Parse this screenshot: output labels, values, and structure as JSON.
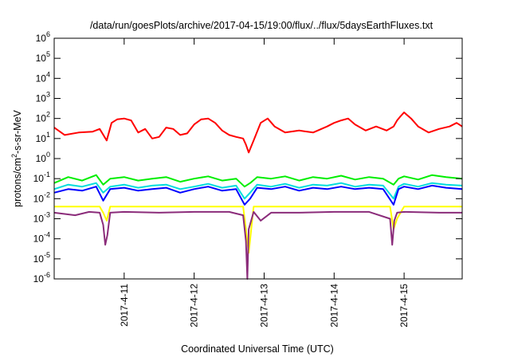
{
  "chart_data": {
    "type": "line",
    "title": "/data/run/goesPlots/archive/2017-04-15/19:00/flux/../flux/5daysEarthFluxes.txt",
    "xlabel": "Coordinated Universal Time (UTC)",
    "ylabel": {
      "main": "protons/cm",
      "sup": "2",
      "rest": "-s-sr-MeV"
    },
    "x_tick_labels": [
      "2017-4-11",
      "2017-4-12",
      "2017-4-13",
      "2017-4-14",
      "2017-4-15"
    ],
    "x_tick_positions": [
      1,
      2,
      3,
      4,
      5
    ],
    "xlim": [
      0.0,
      5.83
    ],
    "y_scale": "log",
    "ylim": [
      1e-06,
      1000000.0
    ],
    "y_tick_labels": [
      {
        "base": "10",
        "exp": "-6"
      },
      {
        "base": "10",
        "exp": "-5"
      },
      {
        "base": "10",
        "exp": "-4"
      },
      {
        "base": "10",
        "exp": "-3"
      },
      {
        "base": "10",
        "exp": "-2"
      },
      {
        "base": "10",
        "exp": "-1"
      },
      {
        "base": "10",
        "exp": "0"
      },
      {
        "base": "10",
        "exp": "1"
      },
      {
        "base": "10",
        "exp": "2"
      },
      {
        "base": "10",
        "exp": "3"
      },
      {
        "base": "10",
        "exp": "4"
      },
      {
        "base": "10",
        "exp": "5"
      },
      {
        "base": "10",
        "exp": "6"
      }
    ],
    "y_tick_values": [
      1e-06,
      1e-05,
      0.0001,
      0.001,
      0.01,
      0.1,
      1,
      10,
      100,
      1000,
      10000,
      100000,
      1000000
    ],
    "grid": false,
    "legend": "none",
    "series": [
      {
        "color": "#ff0000",
        "x": [
          0.0,
          0.15,
          0.35,
          0.55,
          0.65,
          0.75,
          0.82,
          0.9,
          1.0,
          1.1,
          1.2,
          1.3,
          1.4,
          1.5,
          1.6,
          1.7,
          1.8,
          1.9,
          2.0,
          2.1,
          2.2,
          2.3,
          2.4,
          2.5,
          2.6,
          2.7,
          2.74,
          2.78,
          2.85,
          2.95,
          3.05,
          3.15,
          3.3,
          3.5,
          3.7,
          3.9,
          4.0,
          4.1,
          4.2,
          4.3,
          4.45,
          4.6,
          4.75,
          4.85,
          4.9,
          4.95,
          5.0,
          5.1,
          5.2,
          5.35,
          5.5,
          5.65,
          5.75,
          5.83
        ],
        "y": [
          35,
          15,
          20,
          22,
          30,
          8,
          60,
          90,
          100,
          80,
          20,
          30,
          10,
          12,
          35,
          30,
          15,
          18,
          50,
          90,
          100,
          60,
          25,
          15,
          12,
          10,
          5,
          2,
          8,
          60,
          100,
          40,
          20,
          25,
          20,
          40,
          60,
          80,
          100,
          50,
          25,
          40,
          25,
          40,
          80,
          130,
          200,
          100,
          40,
          20,
          30,
          40,
          60,
          40
        ]
      },
      {
        "color": "#00ee00",
        "x": [
          0.0,
          0.2,
          0.4,
          0.6,
          0.7,
          0.8,
          1.0,
          1.2,
          1.4,
          1.6,
          1.8,
          2.0,
          2.2,
          2.4,
          2.6,
          2.72,
          2.8,
          2.9,
          3.1,
          3.3,
          3.5,
          3.7,
          3.9,
          4.1,
          4.3,
          4.5,
          4.7,
          4.85,
          4.92,
          5.0,
          5.2,
          5.4,
          5.6,
          5.83
        ],
        "y": [
          0.06,
          0.12,
          0.08,
          0.15,
          0.05,
          0.1,
          0.12,
          0.08,
          0.1,
          0.12,
          0.07,
          0.1,
          0.13,
          0.08,
          0.1,
          0.04,
          0.06,
          0.12,
          0.1,
          0.13,
          0.08,
          0.12,
          0.1,
          0.14,
          0.09,
          0.12,
          0.1,
          0.05,
          0.1,
          0.13,
          0.09,
          0.15,
          0.12,
          0.1
        ]
      },
      {
        "color": "#00dddd",
        "x": [
          0.0,
          0.2,
          0.4,
          0.6,
          0.7,
          0.8,
          1.0,
          1.2,
          1.4,
          1.6,
          1.8,
          2.0,
          2.2,
          2.4,
          2.6,
          2.72,
          2.8,
          2.9,
          3.1,
          3.3,
          3.5,
          3.7,
          3.9,
          4.1,
          4.3,
          4.5,
          4.7,
          4.85,
          4.92,
          5.0,
          5.2,
          5.4,
          5.6,
          5.83
        ],
        "y": [
          0.03,
          0.05,
          0.04,
          0.06,
          0.02,
          0.04,
          0.05,
          0.035,
          0.045,
          0.05,
          0.03,
          0.04,
          0.055,
          0.035,
          0.045,
          0.01,
          0.02,
          0.05,
          0.04,
          0.055,
          0.035,
          0.05,
          0.045,
          0.06,
          0.04,
          0.05,
          0.045,
          0.01,
          0.04,
          0.055,
          0.04,
          0.06,
          0.05,
          0.045
        ]
      },
      {
        "color": "#0000ff",
        "x": [
          0.0,
          0.2,
          0.4,
          0.6,
          0.7,
          0.8,
          1.0,
          1.2,
          1.4,
          1.6,
          1.8,
          2.0,
          2.2,
          2.4,
          2.6,
          2.72,
          2.8,
          2.9,
          3.1,
          3.3,
          3.5,
          3.7,
          3.9,
          4.1,
          4.3,
          4.5,
          4.7,
          4.85,
          4.92,
          5.0,
          5.2,
          5.4,
          5.6,
          5.83
        ],
        "y": [
          0.02,
          0.03,
          0.025,
          0.04,
          0.008,
          0.03,
          0.035,
          0.025,
          0.03,
          0.035,
          0.02,
          0.03,
          0.04,
          0.025,
          0.03,
          0.005,
          0.01,
          0.035,
          0.03,
          0.04,
          0.025,
          0.035,
          0.03,
          0.04,
          0.03,
          0.035,
          0.03,
          0.005,
          0.03,
          0.04,
          0.03,
          0.045,
          0.035,
          0.03
        ]
      },
      {
        "color": "#ffff00",
        "x": [
          0.0,
          0.5,
          0.65,
          0.7,
          0.75,
          0.8,
          1.5,
          2.5,
          2.7,
          2.74,
          2.78,
          2.85,
          3.5,
          4.5,
          4.8,
          4.85,
          4.9,
          5.0,
          5.83
        ],
        "y": [
          0.004,
          0.004,
          0.004,
          0.002,
          0.0008,
          0.004,
          0.004,
          0.004,
          0.004,
          0.0003,
          2e-05,
          0.004,
          0.004,
          0.004,
          0.004,
          0.0003,
          0.001,
          0.004,
          0.004
        ]
      },
      {
        "color": "#8b2c7a",
        "x": [
          0.0,
          0.3,
          0.5,
          0.65,
          0.7,
          0.73,
          0.76,
          0.8,
          1.0,
          1.5,
          2.0,
          2.5,
          2.7,
          2.74,
          2.76,
          2.78,
          2.85,
          2.95,
          3.1,
          3.5,
          4.0,
          4.5,
          4.8,
          4.83,
          4.86,
          4.9,
          5.0,
          5.5,
          5.83
        ],
        "y": [
          0.002,
          0.0015,
          0.0022,
          0.002,
          0.0005,
          5e-05,
          0.00015,
          0.002,
          0.0022,
          0.002,
          0.0022,
          0.0022,
          0.0015,
          8e-05,
          1e-06,
          0.0003,
          0.0022,
          0.0008,
          0.002,
          0.002,
          0.0022,
          0.0022,
          0.001,
          5e-05,
          0.0008,
          0.002,
          0.0022,
          0.002,
          0.002
        ]
      }
    ]
  }
}
